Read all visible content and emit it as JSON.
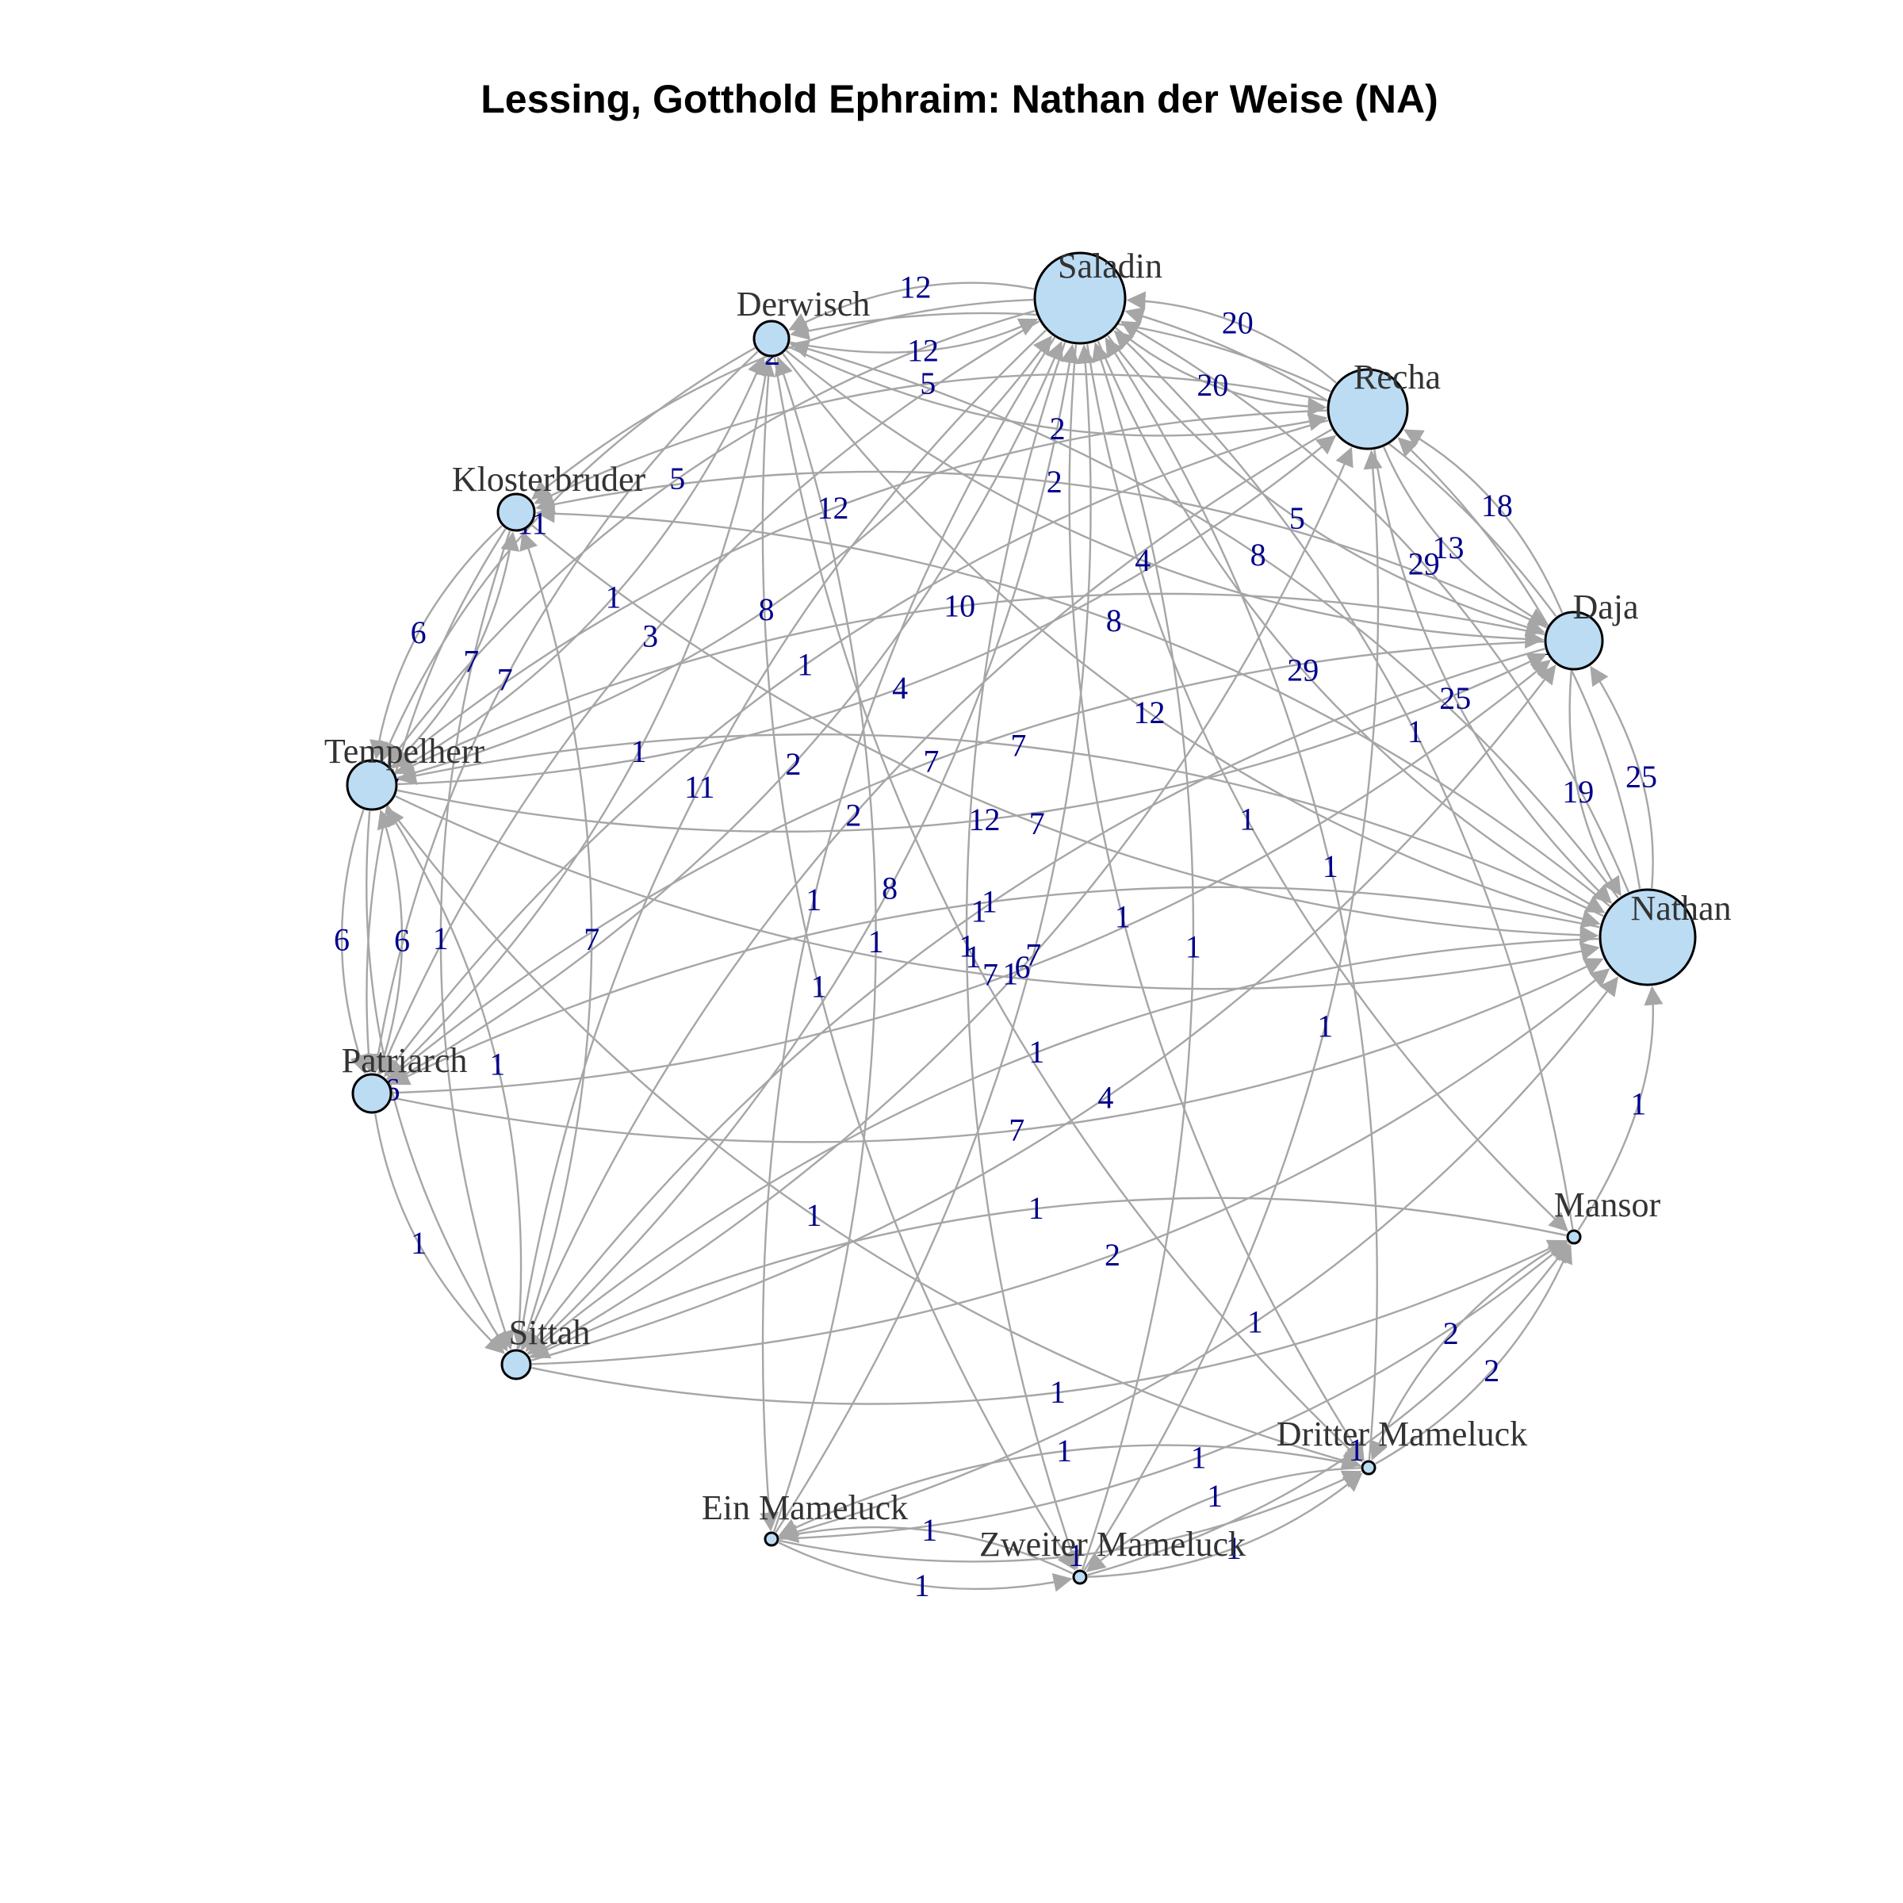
{
  "title": "Lessing, Gotthold Ephraim: Nathan der Weise (NA)",
  "colors": {
    "node_fill": "#bcdcf4",
    "node_stroke": "#000000",
    "edge": "#a6a6a6",
    "edge_label": "#00008b",
    "node_label": "#333333"
  },
  "nodes": [
    {
      "id": "Saladin",
      "label": "Saladin",
      "degree": 12
    },
    {
      "id": "Recha",
      "label": "Recha",
      "degree": 10
    },
    {
      "id": "Daja",
      "label": "Daja",
      "degree": 7
    },
    {
      "id": "Nathan",
      "label": "Nathan",
      "degree": 13
    },
    {
      "id": "Mansor",
      "label": "Mansor",
      "degree": 1
    },
    {
      "id": "Dritter Mameluck",
      "label": "Dritter Mameluck",
      "degree": 1
    },
    {
      "id": "Zweiter Mameluck",
      "label": "Zweiter Mameluck",
      "degree": 1
    },
    {
      "id": "Ein Mameluck",
      "label": "Ein Mameluck",
      "degree": 1
    },
    {
      "id": "Sittah",
      "label": "Sittah",
      "degree": 4
    },
    {
      "id": "Patriarch",
      "label": "Patriarch",
      "degree": 5
    },
    {
      "id": "Tempelherr",
      "label": "Tempelherr",
      "degree": 6
    },
    {
      "id": "Klosterbruder",
      "label": "Klosterbruder",
      "degree": 4
    },
    {
      "id": "Derwisch",
      "label": "Derwisch",
      "degree": 4
    }
  ],
  "edges": [
    {
      "source": "Derwisch",
      "target": "Saladin",
      "weight": 12
    },
    {
      "source": "Saladin",
      "target": "Derwisch",
      "weight": 12
    },
    {
      "source": "Saladin",
      "target": "Recha",
      "weight": 20
    },
    {
      "source": "Recha",
      "target": "Saladin",
      "weight": 20
    },
    {
      "source": "Recha",
      "target": "Daja",
      "weight": 13
    },
    {
      "source": "Daja",
      "target": "Recha",
      "weight": 18
    },
    {
      "source": "Daja",
      "target": "Nathan",
      "weight": 19
    },
    {
      "source": "Nathan",
      "target": "Daja",
      "weight": 25
    },
    {
      "source": "Klosterbruder",
      "target": "Tempelherr",
      "weight": 6
    },
    {
      "source": "Tempelherr",
      "target": "Klosterbruder",
      "weight": 7
    },
    {
      "source": "Tempelherr",
      "target": "Patriarch",
      "weight": 6
    },
    {
      "source": "Patriarch",
      "target": "Tempelherr",
      "weight": 6
    },
    {
      "source": "Mansor",
      "target": "Dritter Mameluck",
      "weight": 2
    },
    {
      "source": "Dritter Mameluck",
      "target": "Mansor",
      "weight": 2
    },
    {
      "source": "Ein Mameluck",
      "target": "Zweiter Mameluck",
      "weight": 1
    },
    {
      "source": "Zweiter Mameluck",
      "target": "Ein Mameluck",
      "weight": 1
    },
    {
      "source": "Zweiter Mameluck",
      "target": "Dritter Mameluck",
      "weight": 1
    },
    {
      "source": "Dritter Mameluck",
      "target": "Zweiter Mameluck",
      "weight": 1
    },
    {
      "source": "Dritter Mameluck",
      "target": "Ein Mameluck",
      "weight": 1
    },
    {
      "source": "Ein Mameluck",
      "target": "Dritter Mameluck",
      "weight": 1
    },
    {
      "source": "Tempelherr",
      "target": "Nathan",
      "weight": 7
    },
    {
      "source": "Nathan",
      "target": "Tempelherr",
      "weight": 7
    },
    {
      "source": "Saladin",
      "target": "Nathan",
      "weight": 29
    },
    {
      "source": "Nathan",
      "target": "Saladin",
      "weight": 29
    },
    {
      "source": "Recha",
      "target": "Nathan",
      "weight": 25
    },
    {
      "source": "Nathan",
      "target": "Recha",
      "weight": 10
    },
    {
      "source": "Derwisch",
      "target": "Nathan",
      "weight": 12
    },
    {
      "source": "Nathan",
      "target": "Derwisch",
      "weight": 8
    },
    {
      "source": "Klosterbruder",
      "target": "Nathan",
      "weight": 7
    },
    {
      "source": "Nathan",
      "target": "Klosterbruder",
      "weight": 8
    },
    {
      "source": "Patriarch",
      "target": "Nathan",
      "weight": 7
    },
    {
      "source": "Nathan",
      "target": "Patriarch",
      "weight": 1
    },
    {
      "source": "Sittah",
      "target": "Nathan",
      "weight": 2
    },
    {
      "source": "Nathan",
      "target": "Sittah",
      "weight": 1
    },
    {
      "source": "Mansor",
      "target": "Nathan",
      "weight": 1
    },
    {
      "source": "Ein Mameluck",
      "target": "Nathan",
      "weight": 1
    },
    {
      "source": "Saladin",
      "target": "Daja",
      "weight": 5
    },
    {
      "source": "Daja",
      "target": "Saladin",
      "weight": 7
    },
    {
      "source": "Tempelherr",
      "target": "Daja",
      "weight": 12
    },
    {
      "source": "Daja",
      "target": "Tempelherr",
      "weight": 10
    },
    {
      "source": "Derwisch",
      "target": "Daja",
      "weight": 4
    },
    {
      "source": "Sittah",
      "target": "Daja",
      "weight": 4
    },
    {
      "source": "Patriarch",
      "target": "Daja",
      "weight": 1
    },
    {
      "source": "Saladin",
      "target": "Sittah",
      "weight": 11
    },
    {
      "source": "Sittah",
      "target": "Saladin",
      "weight": 8
    },
    {
      "source": "Saladin",
      "target": "Tempelherr",
      "weight": 5
    },
    {
      "source": "Tempelherr",
      "target": "Saladin",
      "weight": 8
    },
    {
      "source": "Saladin",
      "target": "Patriarch",
      "weight": 3
    },
    {
      "source": "Patriarch",
      "target": "Saladin",
      "weight": 2
    },
    {
      "source": "Saladin",
      "target": "Klosterbruder",
      "weight": 2
    },
    {
      "source": "Saladin",
      "target": "Mansor",
      "weight": 1
    },
    {
      "source": "Mansor",
      "target": "Saladin",
      "weight": 1
    },
    {
      "source": "Saladin",
      "target": "Ein Mameluck",
      "weight": 1
    },
    {
      "source": "Ein Mameluck",
      "target": "Saladin",
      "weight": 7
    },
    {
      "source": "Saladin",
      "target": "Zweiter Mameluck",
      "weight": 1
    },
    {
      "source": "Zweiter Mameluck",
      "target": "Saladin",
      "weight": 1
    },
    {
      "source": "Saladin",
      "target": "Dritter Mameluck",
      "weight": 1
    },
    {
      "source": "Dritter Mameluck",
      "target": "Saladin",
      "weight": 1
    },
    {
      "source": "Recha",
      "target": "Tempelherr",
      "weight": 12
    },
    {
      "source": "Tempelherr",
      "target": "Recha",
      "weight": 4
    },
    {
      "source": "Recha",
      "target": "Klosterbruder",
      "weight": 5
    },
    {
      "source": "Recha",
      "target": "Sittah",
      "weight": 2
    },
    {
      "source": "Sittah",
      "target": "Recha",
      "weight": 6
    },
    {
      "source": "Recha",
      "target": "Derwisch",
      "weight": 5
    },
    {
      "source": "Derwisch",
      "target": "Recha",
      "weight": 2
    },
    {
      "source": "Recha",
      "target": "Patriarch",
      "weight": 1
    },
    {
      "source": "Daja",
      "target": "Patriarch",
      "weight": 7
    },
    {
      "source": "Daja",
      "target": "Sittah",
      "weight": 1
    },
    {
      "source": "Daja",
      "target": "Klosterbruder",
      "weight": 2
    },
    {
      "source": "Derwisch",
      "target": "Tempelherr",
      "weight": 11
    },
    {
      "source": "Tempelherr",
      "target": "Derwisch",
      "weight": 1
    },
    {
      "source": "Derwisch",
      "target": "Patriarch",
      "weight": 7
    },
    {
      "source": "Patriarch",
      "target": "Derwisch",
      "weight": 1
    },
    {
      "source": "Derwisch",
      "target": "Zweiter Mameluck",
      "weight": 1
    },
    {
      "source": "Derwisch",
      "target": "Dritter Mameluck",
      "weight": 1
    },
    {
      "source": "Ein Mameluck",
      "target": "Derwisch",
      "weight": 1
    },
    {
      "source": "Klosterbruder",
      "target": "Sittah",
      "weight": 1
    },
    {
      "source": "Sittah",
      "target": "Klosterbruder",
      "weight": 7
    },
    {
      "source": "Sittah",
      "target": "Tempelherr",
      "weight": 1
    },
    {
      "source": "Patriarch",
      "target": "Sittah",
      "weight": 1
    },
    {
      "source": "Sittah",
      "target": "Mansor",
      "weight": 1
    },
    {
      "source": "Mansor",
      "target": "Sittah",
      "weight": 1
    },
    {
      "source": "Zweiter Mameluck",
      "target": "Mansor",
      "weight": 1
    },
    {
      "source": "Ein Mameluck",
      "target": "Mansor",
      "weight": 1
    },
    {
      "source": "Tempelherr",
      "target": "Sittah",
      "weight": 6
    },
    {
      "source": "Klosterbruder",
      "target": "Patriarch",
      "weight": 7
    },
    {
      "source": "Tempelherr",
      "target": "Dritter Mameluck",
      "weight": 1
    },
    {
      "source": "Zweiter Mameluck",
      "target": "Recha",
      "weight": 1
    }
  ]
}
